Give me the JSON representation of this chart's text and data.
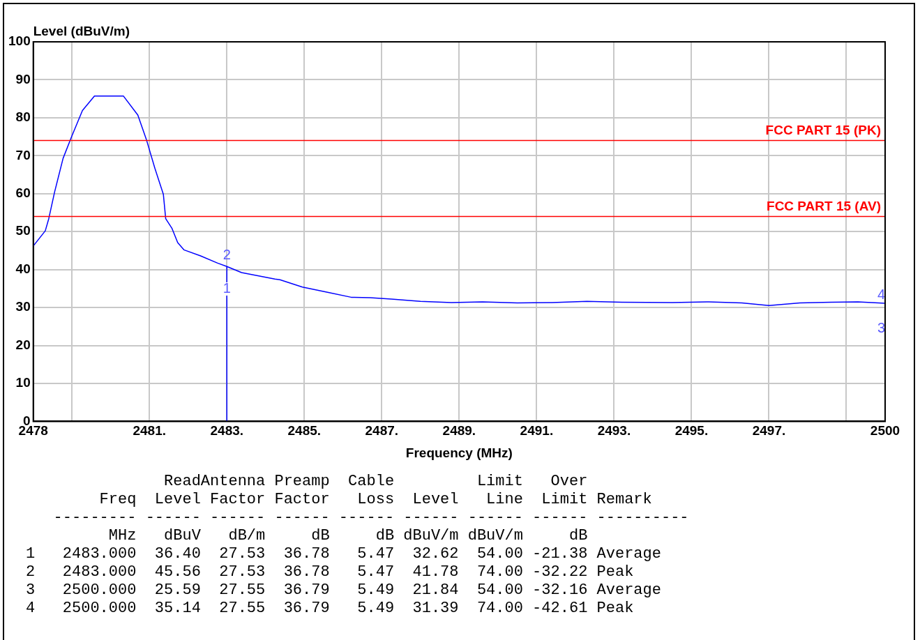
{
  "chart_data": {
    "type": "line",
    "xlabel": "Frequency (MHz)",
    "ylabel": "Level (dBuV/m)",
    "xlim": [
      2478,
      2500
    ],
    "ylim": [
      0,
      100
    ],
    "xticks": [
      2478,
      {
        "value": 2479,
        "label": null
      },
      {
        "value": 2481,
        "label": "2481."
      },
      {
        "value": 2483,
        "label": "2483."
      },
      {
        "value": 2485,
        "label": "2485."
      },
      {
        "value": 2487,
        "label": "2487."
      },
      {
        "value": 2489,
        "label": "2489."
      },
      {
        "value": 2491,
        "label": "2491."
      },
      {
        "value": 2493,
        "label": "2493."
      },
      {
        "value": 2495,
        "label": "2495."
      },
      {
        "value": 2497,
        "label": "2497."
      },
      {
        "value": 2499,
        "label": null
      },
      2500
    ],
    "yticks": [
      0,
      10,
      20,
      30,
      40,
      50,
      60,
      70,
      80,
      90,
      100
    ],
    "grid": true,
    "legend": false,
    "marker": "none",
    "line_style": "solid",
    "series": [
      {
        "color": "#0000ff",
        "x": [
          2478,
          2478.31,
          2478.4,
          2478.55,
          2478.77,
          2478.99,
          2479.27,
          2479.58,
          2480.33,
          2480.7,
          2480.92,
          2481.14,
          2481.36,
          2481.42,
          2481.58,
          2481.73,
          2481.89,
          2482.32,
          2482.76,
          2483,
          2483,
          2483,
          2483.38,
          2484.24,
          2484.37,
          2484.95,
          2485.6,
          2486.21,
          2486.7,
          2487.25,
          2488,
          2488.8,
          2489.6,
          2490.5,
          2491.4,
          2492.3,
          2493.2,
          2494.5,
          2495.4,
          2496.3,
          2497,
          2497.8,
          2498.6,
          2499.3,
          2500
        ],
        "values": [
          46.2,
          50.2,
          53.4,
          60.4,
          69.3,
          75,
          81.9,
          85.7,
          85.7,
          80.7,
          74.3,
          66.7,
          59.8,
          53.4,
          50.9,
          47.1,
          45.2,
          43.6,
          41.7,
          40.8,
          0,
          40.8,
          39.2,
          37.5,
          37.3,
          35.4,
          34,
          32.7,
          32.6,
          32.2,
          31.6,
          31.3,
          31.5,
          31.2,
          31.3,
          31.6,
          31.4,
          31.3,
          31.5,
          31.2,
          30.5,
          31.2,
          31.4,
          31.5,
          31.1
        ]
      }
    ],
    "ref_lines": [
      {
        "axis": "y",
        "value": 74,
        "label": "FCC PART 15 (PK)",
        "color": "#ff0000"
      },
      {
        "axis": "y",
        "value": 54,
        "label": "FCC PART 15 (AV)",
        "color": "#ff0000"
      }
    ],
    "annotations": [
      "1",
      {
        "text": "2",
        "x": 2483,
        "y": 41.78
      },
      "3",
      {
        "text": "4",
        "x": 2500,
        "y": 31.39
      },
      "               ReadAntenna Preamp  Cable         Limit   Over",
      "        Freq  Level Factor Factor   Loss  Level   Line  Limit Remark",
      "   --------- ------ ------ ------ ------ ------ ------ ------ ----------",
      "         MHz   dBuV   dB/m     dB     dB dBuV/m dBuV/m     dB",
      "1   2483.000  36.40  27.53  36.78   5.47  32.62  54.00 -21.38 Average",
      "2   2483.000  45.56  27.53  36.78   5.47  41.78  74.00 -32.22 Peak",
      "3   2500.000  25.59  27.55  36.79   5.49  21.84  54.00 -32.16 Average",
      "4   2500.000  35.14  27.55  36.79   5.49  31.39  74.00 -42.61 Peak"
    ]
  }
}
